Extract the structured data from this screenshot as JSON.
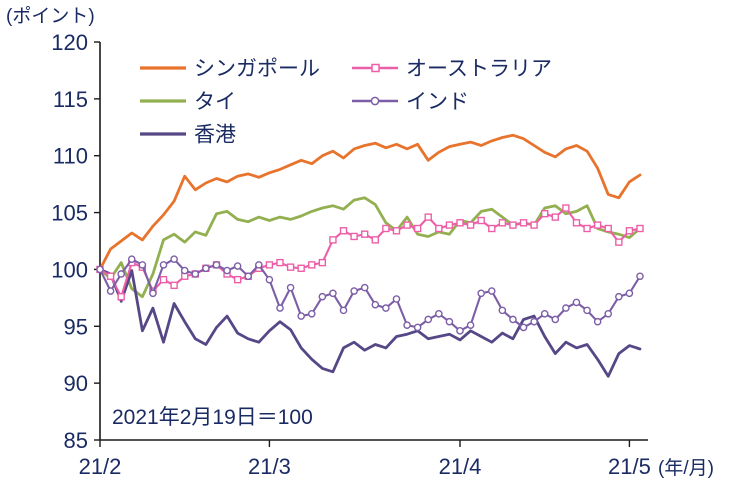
{
  "page": {
    "background": "#ffffff"
  },
  "chart_data": {
    "type": "line",
    "title": "",
    "y_axis_unit_label": "(ポイント)",
    "x_axis_unit_label": "(年/月)",
    "annotation": "2021年2月19日＝100",
    "ylim": [
      85,
      120
    ],
    "y_ticks": [
      85,
      90,
      95,
      100,
      105,
      110,
      115,
      120
    ],
    "x_ticks": [
      {
        "label": "21/2",
        "index": 0
      },
      {
        "label": "21/3",
        "index": 16
      },
      {
        "label": "21/4",
        "index": 34
      },
      {
        "label": "21/5",
        "index": 50
      }
    ],
    "axis_color": "#1a1a1a",
    "text_color": "#1a2b63",
    "grid": false,
    "legend_position": "top-left-inside",
    "legend_columns": [
      [
        0,
        1,
        2
      ],
      [
        3,
        4
      ]
    ],
    "series": [
      {
        "key": "singapore",
        "name": "シンガポール",
        "color": "#e8732c",
        "marker": "none",
        "values": [
          100,
          101.8,
          102.5,
          103.2,
          102.6,
          103.8,
          104.8,
          106.0,
          108.2,
          107.0,
          107.6,
          108.0,
          107.7,
          108.2,
          108.4,
          108.1,
          108.5,
          108.8,
          109.2,
          109.6,
          109.3,
          110.0,
          110.4,
          109.8,
          110.6,
          110.9,
          111.1,
          110.7,
          111.0,
          110.6,
          111.0,
          109.6,
          110.3,
          110.8,
          111.0,
          111.2,
          110.9,
          111.3,
          111.6,
          111.8,
          111.5,
          110.9,
          110.3,
          109.9,
          110.6,
          110.9,
          110.4,
          108.9,
          106.6,
          106.3,
          107.7,
          108.3
        ]
      },
      {
        "key": "thailand",
        "name": "タイ",
        "color": "#93b050",
        "marker": "none",
        "values": [
          100,
          99.2,
          100.6,
          98.3,
          97.6,
          99.6,
          102.6,
          103.1,
          102.4,
          103.3,
          103.0,
          104.9,
          105.1,
          104.4,
          104.2,
          104.6,
          104.3,
          104.6,
          104.4,
          104.7,
          105.1,
          105.4,
          105.6,
          105.3,
          106.1,
          106.3,
          105.7,
          104.1,
          103.4,
          104.6,
          103.1,
          102.9,
          103.3,
          103.1,
          104.3,
          104.1,
          105.1,
          105.3,
          104.6,
          103.9,
          104.1,
          103.9,
          105.4,
          105.6,
          104.9,
          105.1,
          105.6,
          103.6,
          103.3,
          103.1,
          102.8,
          103.6
        ]
      },
      {
        "key": "hongkong",
        "name": "香港",
        "color": "#564787",
        "marker": "none",
        "values": [
          100,
          99.6,
          97.2,
          99.9,
          94.6,
          96.6,
          93.6,
          97.0,
          95.4,
          93.9,
          93.4,
          94.9,
          95.9,
          94.4,
          93.9,
          93.6,
          94.6,
          95.4,
          94.7,
          93.1,
          92.1,
          91.3,
          91.0,
          93.1,
          93.6,
          92.9,
          93.4,
          93.1,
          94.1,
          94.3,
          94.6,
          93.9,
          94.1,
          94.3,
          93.8,
          94.6,
          94.1,
          93.6,
          94.4,
          93.9,
          95.6,
          95.9,
          94.1,
          92.6,
          93.6,
          93.1,
          93.4,
          92.1,
          90.6,
          92.6,
          93.3,
          93.0
        ]
      },
      {
        "key": "australia",
        "name": "オーストラリア",
        "color": "#ec5fa8",
        "marker": "square",
        "values": [
          100,
          99.4,
          97.6,
          100.6,
          100.2,
          98.1,
          99.1,
          98.6,
          99.4,
          99.6,
          100.1,
          100.4,
          99.6,
          99.1,
          99.4,
          100.1,
          100.4,
          100.6,
          100.2,
          100.1,
          100.4,
          100.6,
          102.6,
          103.4,
          102.9,
          103.1,
          102.6,
          103.6,
          103.4,
          103.9,
          103.6,
          104.6,
          103.6,
          103.9,
          104.1,
          103.9,
          104.3,
          103.6,
          104.1,
          103.9,
          104.1,
          103.9,
          104.9,
          104.6,
          105.4,
          104.1,
          103.6,
          103.9,
          103.6,
          102.4,
          103.4,
          103.6
        ]
      },
      {
        "key": "india",
        "name": "インド",
        "color": "#7b5ea7",
        "marker": "circle",
        "values": [
          100,
          98.1,
          99.6,
          100.9,
          100.4,
          97.9,
          100.4,
          100.9,
          99.9,
          99.6,
          100.1,
          100.4,
          99.9,
          100.3,
          99.4,
          100.4,
          99.1,
          96.6,
          98.4,
          95.9,
          96.1,
          97.6,
          97.9,
          96.4,
          98.1,
          98.4,
          96.9,
          96.6,
          97.4,
          95.1,
          94.9,
          95.6,
          96.1,
          95.4,
          94.6,
          95.1,
          97.9,
          98.1,
          96.4,
          95.6,
          94.9,
          95.4,
          96.1,
          95.6,
          96.6,
          97.1,
          96.4,
          95.4,
          96.1,
          97.6,
          97.9,
          99.4
        ]
      }
    ]
  }
}
